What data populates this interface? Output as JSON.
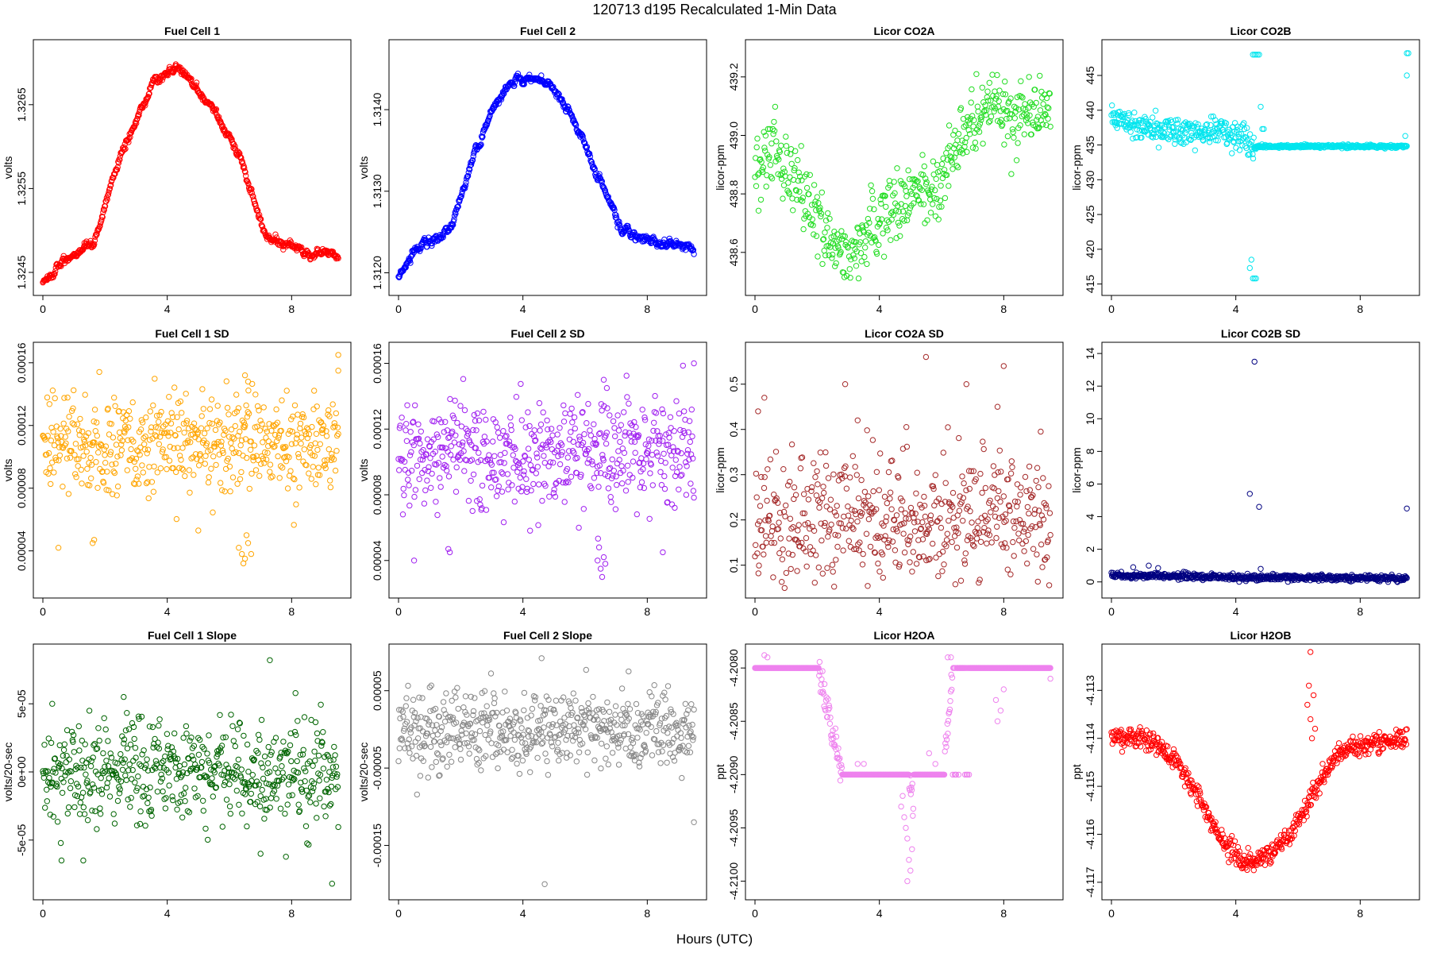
{
  "page_title": "120713   d195   Recalculated 1-Min Data",
  "x_axis_label": "Hours (UTC)",
  "chart_data": [
    {
      "id": "fc1",
      "type": "scatter",
      "title": "Fuel Cell 1",
      "ylabel": "volts",
      "color": "#ff0000",
      "xlim": [
        0,
        9.6
      ],
      "ylim": [
        1.32432,
        1.32718
      ],
      "x_ticks": [
        "0",
        "4",
        "8"
      ],
      "y_ticks": [
        "1.3245",
        "1.3255",
        "1.3265"
      ],
      "y_tick_values": [
        1.3245,
        1.3255,
        1.3265
      ],
      "shape": {
        "kind": "peak",
        "knots": [
          [
            0,
            1.32437
          ],
          [
            0.6,
            1.32462
          ],
          [
            1.6,
            1.32478
          ],
          [
            2.5,
            1.32588
          ],
          [
            3.6,
            1.32683
          ],
          [
            4.5,
            1.32692
          ],
          [
            5.5,
            1.32645
          ],
          [
            6.3,
            1.32588
          ],
          [
            7.2,
            1.3249
          ],
          [
            8.2,
            1.32478
          ],
          [
            9.5,
            1.32468
          ]
        ]
      },
      "noise": 4.5e-05,
      "count": 570
    },
    {
      "id": "fc2",
      "type": "scatter",
      "title": "Fuel Cell 2",
      "ylabel": "volts",
      "color": "#0000ff",
      "xlim": [
        0,
        9.6
      ],
      "ylim": [
        1.31182,
        1.31476
      ],
      "x_ticks": [
        "0",
        "4",
        "8"
      ],
      "y_ticks": [
        "1.3120",
        "1.3130",
        "1.3140"
      ],
      "y_tick_values": [
        1.312,
        1.313,
        1.314
      ],
      "shape": {
        "kind": "peak",
        "knots": [
          [
            0,
            1.31195
          ],
          [
            0.6,
            1.31228
          ],
          [
            1.6,
            1.3125
          ],
          [
            2.5,
            1.31352
          ],
          [
            3.6,
            1.31438
          ],
          [
            4.5,
            1.31445
          ],
          [
            5.5,
            1.31398
          ],
          [
            6.3,
            1.3133
          ],
          [
            7.2,
            1.3125
          ],
          [
            8.2,
            1.3124
          ],
          [
            9.5,
            1.31228
          ]
        ]
      },
      "noise": 5e-05,
      "count": 570
    },
    {
      "id": "co2a",
      "type": "scatter",
      "title": "Licor CO2A",
      "ylabel": "licor-ppm",
      "color": "#22dd22",
      "xlim": [
        0,
        9.6
      ],
      "ylim": [
        438.48,
        439.3
      ],
      "x_ticks": [
        "0",
        "4",
        "8"
      ],
      "y_ticks": [
        "438.6",
        "438.8",
        "439.0",
        "439.2"
      ],
      "y_tick_values": [
        438.6,
        438.8,
        439.0,
        439.2
      ],
      "shape": {
        "kind": "knots",
        "knots": [
          [
            0,
            438.9
          ],
          [
            0.6,
            438.97
          ],
          [
            1.5,
            438.8
          ],
          [
            2.3,
            438.66
          ],
          [
            3.0,
            438.55
          ],
          [
            3.5,
            438.65
          ],
          [
            4.5,
            438.78
          ],
          [
            5.8,
            438.82
          ],
          [
            6.8,
            439.02
          ],
          [
            7.5,
            439.1
          ],
          [
            8.5,
            439.06
          ],
          [
            9.5,
            439.12
          ]
        ]
      },
      "noise": 0.06,
      "count": 500
    },
    {
      "id": "co2b",
      "type": "scatter",
      "title": "Licor CO2B",
      "ylabel": "licor-ppm",
      "color": "#00e5ee",
      "xlim": [
        0,
        9.6
      ],
      "ylim": [
        414.5,
        449.0
      ],
      "x_ticks": [
        "0",
        "4",
        "8"
      ],
      "y_ticks": [
        "415",
        "420",
        "425",
        "430",
        "435",
        "440",
        "445"
      ],
      "y_tick_values": [
        415,
        420,
        425,
        430,
        435,
        440,
        445
      ],
      "shape": {
        "kind": "knots",
        "knots": [
          [
            0,
            439.0
          ],
          [
            1.5,
            437.3
          ],
          [
            2.5,
            436.8
          ],
          [
            3.5,
            437.2
          ],
          [
            4.3,
            436.2
          ],
          [
            4.55,
            434.8
          ],
          [
            5.5,
            434.8
          ],
          [
            9.5,
            434.8
          ]
        ]
      },
      "noise": 1.0,
      "noise_after_x": 4.6,
      "noise_after": 0.12,
      "count": 570,
      "outliers": [
        [
          4.55,
          448.0
        ],
        [
          4.6,
          448.0
        ],
        [
          4.65,
          448.0
        ],
        [
          4.7,
          448.0
        ],
        [
          4.75,
          448.0
        ],
        [
          4.55,
          415.8
        ],
        [
          4.6,
          415.8
        ],
        [
          4.65,
          415.8
        ],
        [
          4.5,
          418.5
        ],
        [
          4.45,
          417.3
        ],
        [
          4.8,
          440.5
        ],
        [
          4.85,
          437.3
        ],
        [
          4.9,
          437.3
        ],
        [
          9.5,
          448.2
        ],
        [
          9.55,
          448.2
        ],
        [
          9.5,
          445.0
        ],
        [
          9.45,
          436.3
        ]
      ]
    },
    {
      "id": "fc1sd",
      "type": "scatter",
      "title": "Fuel Cell 1 SD",
      "ylabel": "volts",
      "color": "#ffa500",
      "xlim": [
        0,
        9.6
      ],
      "ylim": [
        1.5e-05,
        0.000168
      ],
      "x_ticks": [
        "0",
        "4",
        "8"
      ],
      "y_ticks": [
        "0.00004",
        "0.00008",
        "0.00012",
        "0.00016"
      ],
      "y_tick_values": [
        4e-05,
        8e-05,
        0.00012,
        0.00016
      ],
      "shape": {
        "kind": "knots",
        "knots": [
          [
            0,
            0.000108
          ],
          [
            9.6,
            0.000108
          ]
        ]
      },
      "noise": 1.6e-05,
      "count": 540,
      "outliers": [
        [
          0.5,
          4.2e-05
        ],
        [
          1.6,
          4.5e-05
        ],
        [
          1.65,
          4.7e-05
        ],
        [
          6.3,
          4.2e-05
        ],
        [
          6.4,
          3.8e-05
        ],
        [
          6.5,
          3.5e-05
        ],
        [
          6.6,
          4.5e-05
        ],
        [
          6.45,
          3.2e-05
        ],
        [
          6.55,
          5e-05
        ],
        [
          6.7,
          3.8e-05
        ],
        [
          6.5,
          0.000152
        ],
        [
          6.6,
          0.000148
        ],
        [
          9.5,
          0.000165
        ],
        [
          9.5,
          0.000155
        ],
        [
          5.0,
          5.3e-05
        ]
      ]
    },
    {
      "id": "fc2sd",
      "type": "scatter",
      "title": "Fuel Cell 2 SD",
      "ylabel": "volts",
      "color": "#a020f0",
      "xlim": [
        0,
        9.6
      ],
      "ylim": [
        2.2e-05,
        0.000168
      ],
      "x_ticks": [
        "0",
        "4",
        "8"
      ],
      "y_ticks": [
        "0.00004",
        "0.00008",
        "0.00012",
        "0.00016"
      ],
      "y_tick_values": [
        4e-05,
        8e-05,
        0.00012,
        0.00016
      ],
      "shape": {
        "kind": "knots",
        "knots": [
          [
            0,
            0.000105
          ],
          [
            9.6,
            0.000105
          ]
        ]
      },
      "noise": 1.6e-05,
      "count": 540,
      "outliers": [
        [
          0.5,
          4e-05
        ],
        [
          1.6,
          4.7e-05
        ],
        [
          1.65,
          4.5e-05
        ],
        [
          6.4,
          4e-05
        ],
        [
          6.5,
          3.5e-05
        ],
        [
          6.55,
          3e-05
        ],
        [
          6.6,
          4.2e-05
        ],
        [
          6.45,
          4.8e-05
        ],
        [
          6.65,
          3.8e-05
        ],
        [
          6.6,
          0.00015
        ],
        [
          6.7,
          0.000145
        ],
        [
          9.5,
          0.00016
        ],
        [
          8.5,
          4.5e-05
        ]
      ]
    },
    {
      "id": "co2asd",
      "type": "scatter",
      "title": "Licor CO2A SD",
      "ylabel": "licor-ppm",
      "color": "#a52a2a",
      "xlim": [
        0,
        9.6
      ],
      "ylim": [
        0.045,
        0.575
      ],
      "x_ticks": [
        "0",
        "4",
        "8"
      ],
      "y_ticks": [
        "0.1",
        "0.2",
        "0.3",
        "0.4",
        "0.5"
      ],
      "y_tick_values": [
        0.1,
        0.2,
        0.3,
        0.4,
        0.5
      ],
      "shape": {
        "kind": "knots",
        "knots": [
          [
            0,
            0.2
          ],
          [
            9.6,
            0.2
          ]
        ]
      },
      "noise": 0.075,
      "count": 520,
      "outliers": [
        [
          0.3,
          0.47
        ],
        [
          0.1,
          0.44
        ],
        [
          5.5,
          0.56
        ],
        [
          8.0,
          0.54
        ],
        [
          2.9,
          0.5
        ],
        [
          6.8,
          0.5
        ],
        [
          7.8,
          0.45
        ],
        [
          3.3,
          0.42
        ]
      ]
    },
    {
      "id": "co2bsd",
      "type": "scatter",
      "title": "Licor CO2B SD",
      "ylabel": "licor-ppm",
      "color": "#000080",
      "xlim": [
        0,
        9.6
      ],
      "ylim": [
        -0.5,
        14.2
      ],
      "x_ticks": [
        "0",
        "4",
        "8"
      ],
      "y_ticks": [
        "0",
        "2",
        "4",
        "6",
        "8",
        "10",
        "12",
        "14"
      ],
      "y_tick_values": [
        0,
        2,
        4,
        6,
        8,
        10,
        12,
        14
      ],
      "shape": {
        "kind": "knots",
        "knots": [
          [
            0,
            0.38
          ],
          [
            2.5,
            0.35
          ],
          [
            4.0,
            0.28
          ],
          [
            9.6,
            0.22
          ]
        ]
      },
      "noise": 0.09,
      "count": 570,
      "outliers": [
        [
          4.6,
          13.5
        ],
        [
          4.45,
          5.4
        ],
        [
          4.75,
          4.6
        ],
        [
          9.5,
          4.5
        ],
        [
          0.7,
          0.9
        ],
        [
          1.2,
          1.0
        ],
        [
          1.5,
          0.85
        ],
        [
          4.8,
          0.8
        ]
      ]
    },
    {
      "id": "fc1slope",
      "type": "scatter",
      "title": "Fuel Cell 1 Slope",
      "ylabel": "volts/20-sec",
      "color": "#006400",
      "xlim": [
        0,
        9.6
      ],
      "ylim": [
        -8.8e-05,
        8.8e-05
      ],
      "x_ticks": [
        "0",
        "4",
        "8"
      ],
      "y_ticks": [
        "-5e-05",
        "0e+00",
        "5e-05"
      ],
      "y_tick_values": [
        -5e-05,
        0,
        5e-05
      ],
      "shape": {
        "kind": "knots",
        "knots": [
          [
            0,
            0.0
          ],
          [
            9.6,
            0.0
          ]
        ]
      },
      "noise": 1.8e-05,
      "count": 560,
      "outliers": [
        [
          7.3,
          8.2e-05
        ],
        [
          0.6,
          -6.5e-05
        ],
        [
          1.3,
          -6.5e-05
        ],
        [
          9.3,
          -8.2e-05
        ],
        [
          7.0,
          -6e-05
        ],
        [
          2.6,
          5.5e-05
        ],
        [
          0.3,
          5e-05
        ]
      ]
    },
    {
      "id": "fc2slope",
      "type": "scatter",
      "title": "Fuel Cell 2 Slope",
      "ylabel": "volts/20-sec",
      "color": "#888888",
      "xlim": [
        0,
        9.6
      ],
      "ylim": [
        -0.00021,
        0.0001
      ],
      "x_ticks": [
        "0",
        "4",
        "8"
      ],
      "y_ticks": [
        "-0.00015",
        "-0.00005",
        "0.00005"
      ],
      "y_tick_values": [
        -0.00015,
        -5e-05,
        5e-05
      ],
      "shape": {
        "kind": "knots",
        "knots": [
          [
            0,
            0.0
          ],
          [
            9.6,
            0.0
          ]
        ]
      },
      "noise": 2.5e-05,
      "count": 560,
      "outliers": [
        [
          4.6,
          9.2e-05
        ],
        [
          4.7,
          -0.0002
        ],
        [
          7.4,
          7.5e-05
        ],
        [
          9.5,
          -0.00012
        ],
        [
          0.7,
          -6e-05
        ],
        [
          1.3,
          -6e-05
        ]
      ]
    },
    {
      "id": "h2oa",
      "type": "scatter",
      "title": "Licor H2OA",
      "ylabel": "ppt",
      "color": "#ee82ee",
      "xlim": [
        0,
        9.6
      ],
      "ylim": [
        -4.2101,
        -4.20785
      ],
      "x_ticks": [
        "0",
        "4",
        "8"
      ],
      "y_ticks": [
        "-4.2100",
        "-4.2095",
        "-4.2090",
        "-4.2085",
        "-4.2080"
      ],
      "y_tick_values": [
        -4.21,
        -4.2095,
        -4.209,
        -4.2085,
        -4.208
      ],
      "shape": {
        "kind": "steps",
        "segments": [
          [
            0,
            2.05,
            -4.208
          ],
          [
            2.05,
            2.8,
            "ramp",
            -4.208,
            -4.209
          ],
          [
            2.8,
            4.95,
            -4.209
          ],
          [
            4.95,
            5.1,
            "ramp",
            -4.209,
            -4.2093
          ],
          [
            5.1,
            6.1,
            -4.209
          ],
          [
            6.1,
            6.35,
            "ramp",
            -4.2088,
            -4.208
          ],
          [
            6.35,
            7.0,
            "mix",
            -4.208,
            -4.209
          ],
          [
            7.0,
            9.6,
            -4.208
          ]
        ]
      },
      "noise": 0.0,
      "count": 600,
      "outliers": [
        [
          0.3,
          -4.20788
        ],
        [
          0.4,
          -4.2079
        ],
        [
          4.8,
          -4.2094
        ],
        [
          4.85,
          -4.2095
        ],
        [
          4.9,
          -4.2096
        ],
        [
          4.95,
          -4.2098
        ],
        [
          5.0,
          -4.2099
        ],
        [
          4.9,
          -4.21
        ],
        [
          4.75,
          -4.2092
        ],
        [
          5.05,
          -4.2097
        ],
        [
          4.7,
          -4.2093
        ],
        [
          7.8,
          -4.2085
        ],
        [
          7.9,
          -4.2084
        ],
        [
          7.75,
          -4.2083
        ],
        [
          8.0,
          -4.2082
        ],
        [
          6.3,
          -4.2079
        ],
        [
          6.2,
          -4.2079
        ],
        [
          5.6,
          -4.2088
        ],
        [
          5.8,
          -4.2089
        ],
        [
          3.5,
          -4.2089
        ],
        [
          3.3,
          -4.2089
        ],
        [
          9.5,
          -4.2081
        ]
      ]
    },
    {
      "id": "h2ob",
      "type": "scatter",
      "title": "Licor H2OB",
      "ylabel": "ppt",
      "color": "#ff0000",
      "xlim": [
        0,
        9.6
      ],
      "ylim": [
        -4.1172,
        -4.1122
      ],
      "x_ticks": [
        "0",
        "4",
        "8"
      ],
      "y_ticks": [
        "-4.117",
        "-4.116",
        "-4.115",
        "-4.114",
        "-4.113"
      ],
      "y_tick_values": [
        -4.117,
        -4.116,
        -4.115,
        -4.114,
        -4.113
      ],
      "shape": {
        "kind": "knots",
        "knots": [
          [
            0,
            -4.114
          ],
          [
            1.0,
            -4.114
          ],
          [
            2.0,
            -4.1144
          ],
          [
            2.8,
            -4.1152
          ],
          [
            3.4,
            -4.116
          ],
          [
            4.2,
            -4.1166
          ],
          [
            5.2,
            -4.1164
          ],
          [
            5.8,
            -4.116
          ],
          [
            6.6,
            -4.115
          ],
          [
            7.3,
            -4.1143
          ],
          [
            8.3,
            -4.1141
          ],
          [
            9.5,
            -4.114
          ]
        ]
      },
      "noise": 0.00011,
      "count": 580,
      "outliers": [
        [
          6.4,
          -4.1122
        ],
        [
          6.35,
          -4.1129
        ],
        [
          6.5,
          -4.1131
        ],
        [
          6.3,
          -4.1133
        ],
        [
          6.4,
          -4.1136
        ],
        [
          6.45,
          -4.114
        ],
        [
          6.55,
          -4.1138
        ]
      ]
    }
  ]
}
